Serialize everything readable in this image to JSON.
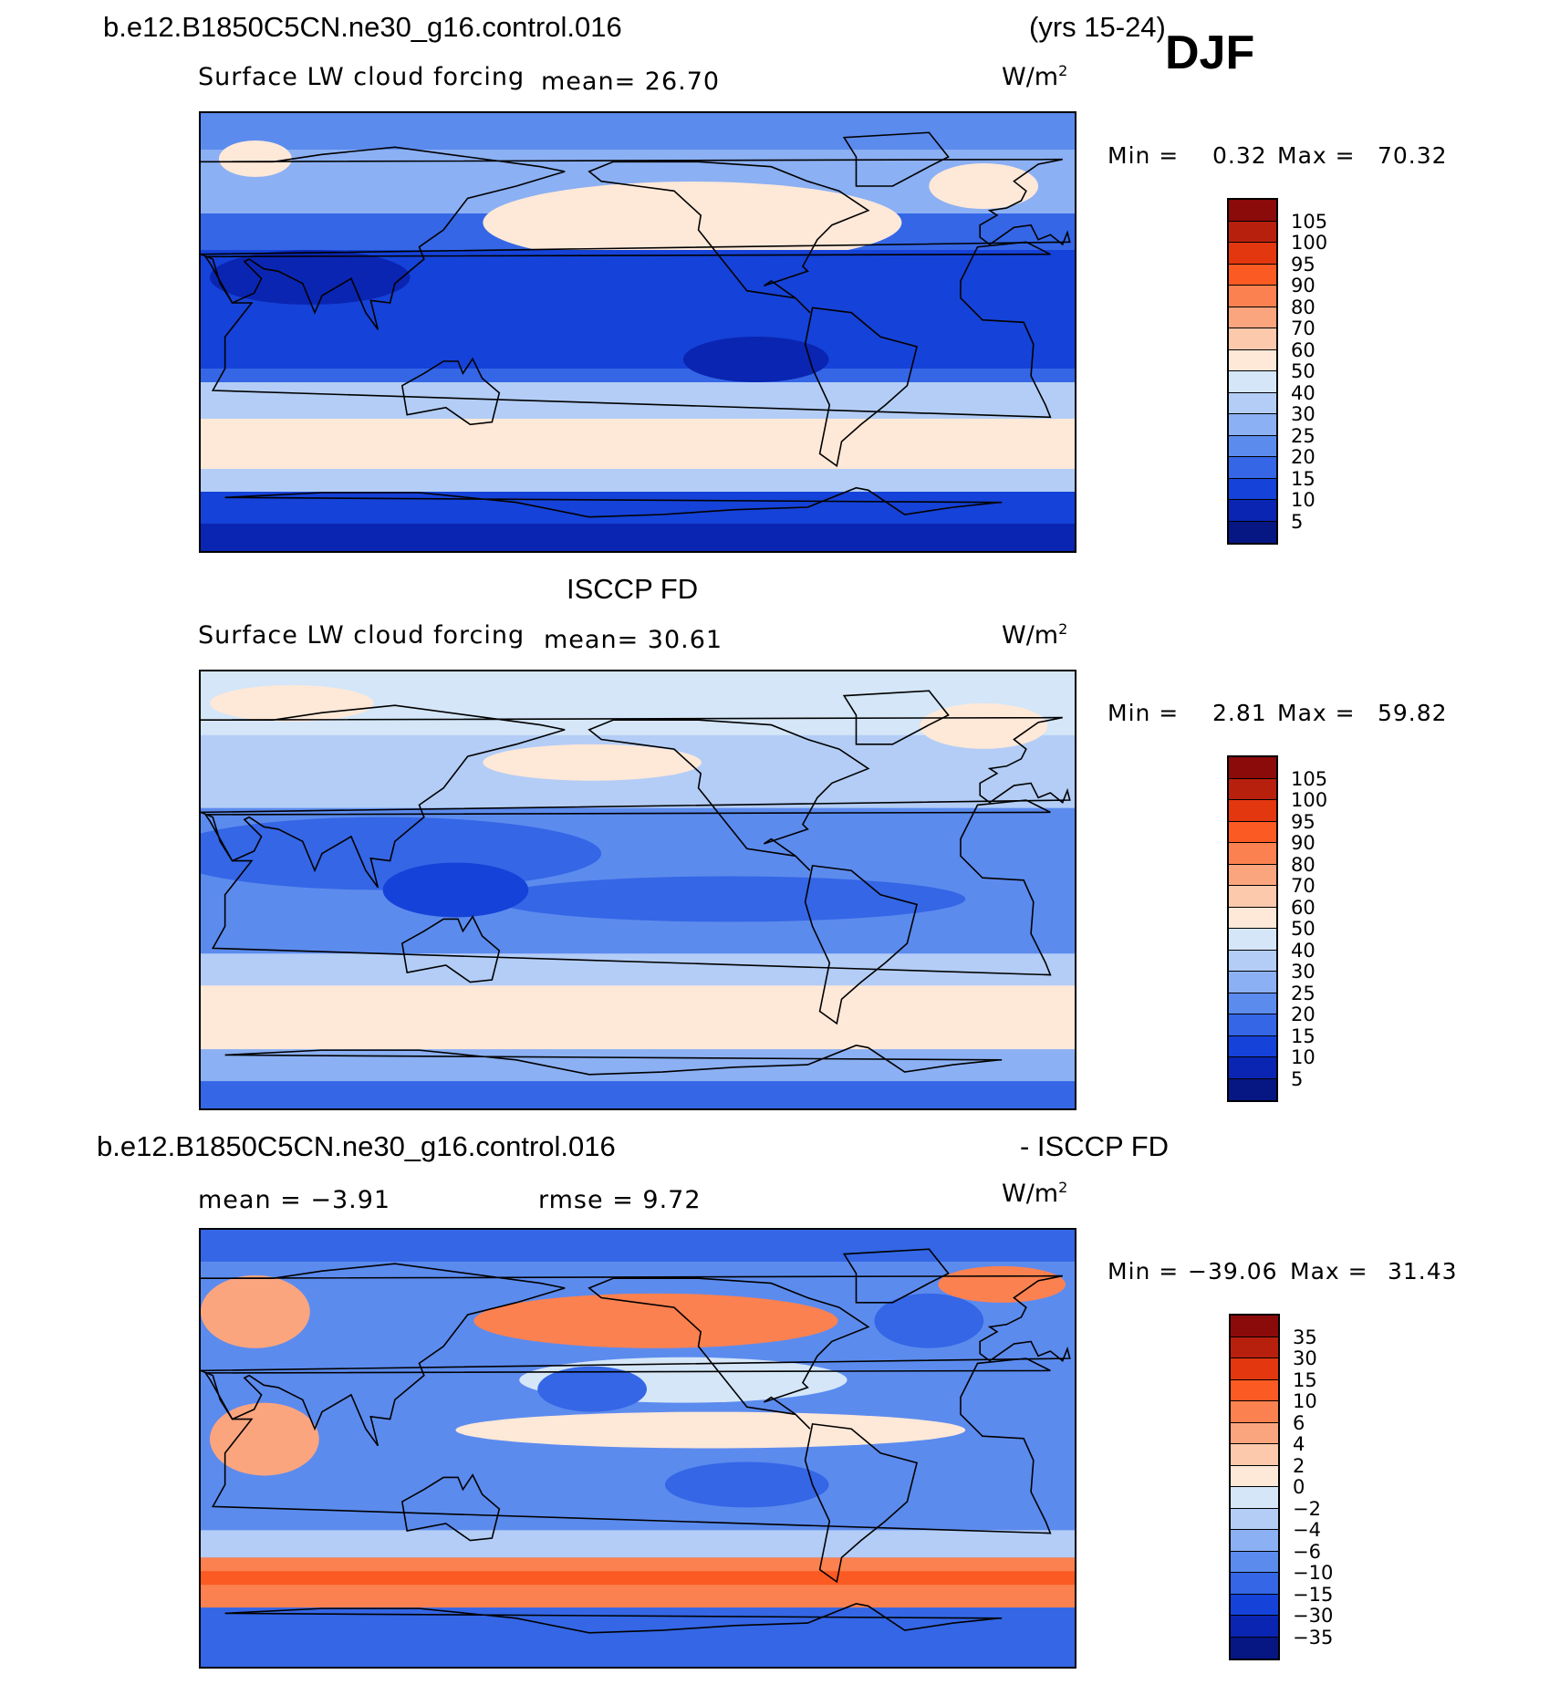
{
  "header": {
    "case_name": "b.e12.B1850C5CN.ne30_g16.control.016",
    "years": "(yrs 15-24)",
    "season": "DJF"
  },
  "panels": [
    {
      "variable": "Surface LW cloud forcing",
      "mean_text": "mean=  26.70",
      "units": "W/m",
      "units_sup": "2",
      "min_label": "Min =",
      "min_value": "0.32",
      "max_label": "Max =",
      "max_value": "70.32",
      "colorbar": {
        "ticks": [
          "105",
          "100",
          "95",
          "90",
          "80",
          "70",
          "60",
          "50",
          "40",
          "30",
          "25",
          "20",
          "15",
          "10",
          "5"
        ],
        "colors": [
          "#8b0a0a",
          "#b8200e",
          "#e2370f",
          "#fb5a23",
          "#fc8150",
          "#fba57f",
          "#fdc9ac",
          "#fee8d8",
          "#d4e6f8",
          "#b3cdf6",
          "#8bb0f3",
          "#5c8bee",
          "#3466e6",
          "#1542d8",
          "#0a25b2",
          "#061682"
        ]
      },
      "map_type": "model"
    },
    {
      "title": "ISCCP FD",
      "variable": "Surface LW cloud forcing",
      "mean_text": "mean=  30.61",
      "units": "W/m",
      "units_sup": "2",
      "min_label": "Min =",
      "min_value": "2.81",
      "max_label": "Max =",
      "max_value": "59.82",
      "colorbar": {
        "ticks": [
          "105",
          "100",
          "95",
          "90",
          "80",
          "70",
          "60",
          "50",
          "40",
          "30",
          "25",
          "20",
          "15",
          "10",
          "5"
        ],
        "colors": [
          "#8b0a0a",
          "#b8200e",
          "#e2370f",
          "#fb5a23",
          "#fc8150",
          "#fba57f",
          "#fdc9ac",
          "#fee8d8",
          "#d4e6f8",
          "#b3cdf6",
          "#8bb0f3",
          "#5c8bee",
          "#3466e6",
          "#1542d8",
          "#0a25b2",
          "#061682"
        ]
      },
      "map_type": "obs"
    },
    {
      "title_left": "b.e12.B1850C5CN.ne30_g16.control.016",
      "title_right": "- ISCCP FD",
      "mean_text": "mean =  −3.91",
      "rmse_text": "rmse =   9.72",
      "units": "W/m",
      "units_sup": "2",
      "min_label": "Min =",
      "min_value": "−39.06",
      "max_label": "Max =",
      "max_value": "31.43",
      "colorbar": {
        "ticks": [
          "35",
          "30",
          "15",
          "10",
          "6",
          "4",
          "2",
          "0",
          "−2",
          "−4",
          "−6",
          "−10",
          "−15",
          "−30",
          "−35"
        ],
        "colors": [
          "#8b0a0a",
          "#b8200e",
          "#e2370f",
          "#fb5a23",
          "#fc8150",
          "#fba57f",
          "#fdc9ac",
          "#fee8d8",
          "#d4e6f8",
          "#b3cdf6",
          "#8bb0f3",
          "#5c8bee",
          "#3466e6",
          "#1542d8",
          "#0a25b2",
          "#061682"
        ]
      },
      "map_type": "diff"
    }
  ]
}
